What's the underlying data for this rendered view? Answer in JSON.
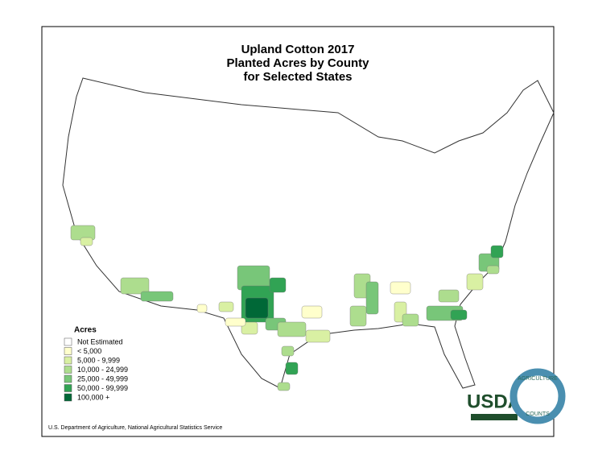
{
  "title": [
    "Upland Cotton 2017",
    "Planted Acres by County",
    "for Selected States"
  ],
  "legend": {
    "title": "Acres",
    "items": [
      {
        "label": "Not Estimated",
        "color": "#ffffff"
      },
      {
        "label": "< 5,000",
        "color": "#ffffcc"
      },
      {
        "label": "5,000 - 9,999",
        "color": "#d9f0a3"
      },
      {
        "label": "10,000 - 24,999",
        "color": "#addd8e"
      },
      {
        "label": "25,000 - 49,999",
        "color": "#78c679"
      },
      {
        "label": "50,000 - 99,999",
        "color": "#31a354"
      },
      {
        "label": "100,000 +",
        "color": "#006837"
      }
    ]
  },
  "source": "U.S. Department of Agriculture, National Agricultural Statistics Service",
  "logo": {
    "usda": "USDA",
    "ring_top": "AGRICULTURE",
    "ring_bottom": "COUNTS"
  }
}
